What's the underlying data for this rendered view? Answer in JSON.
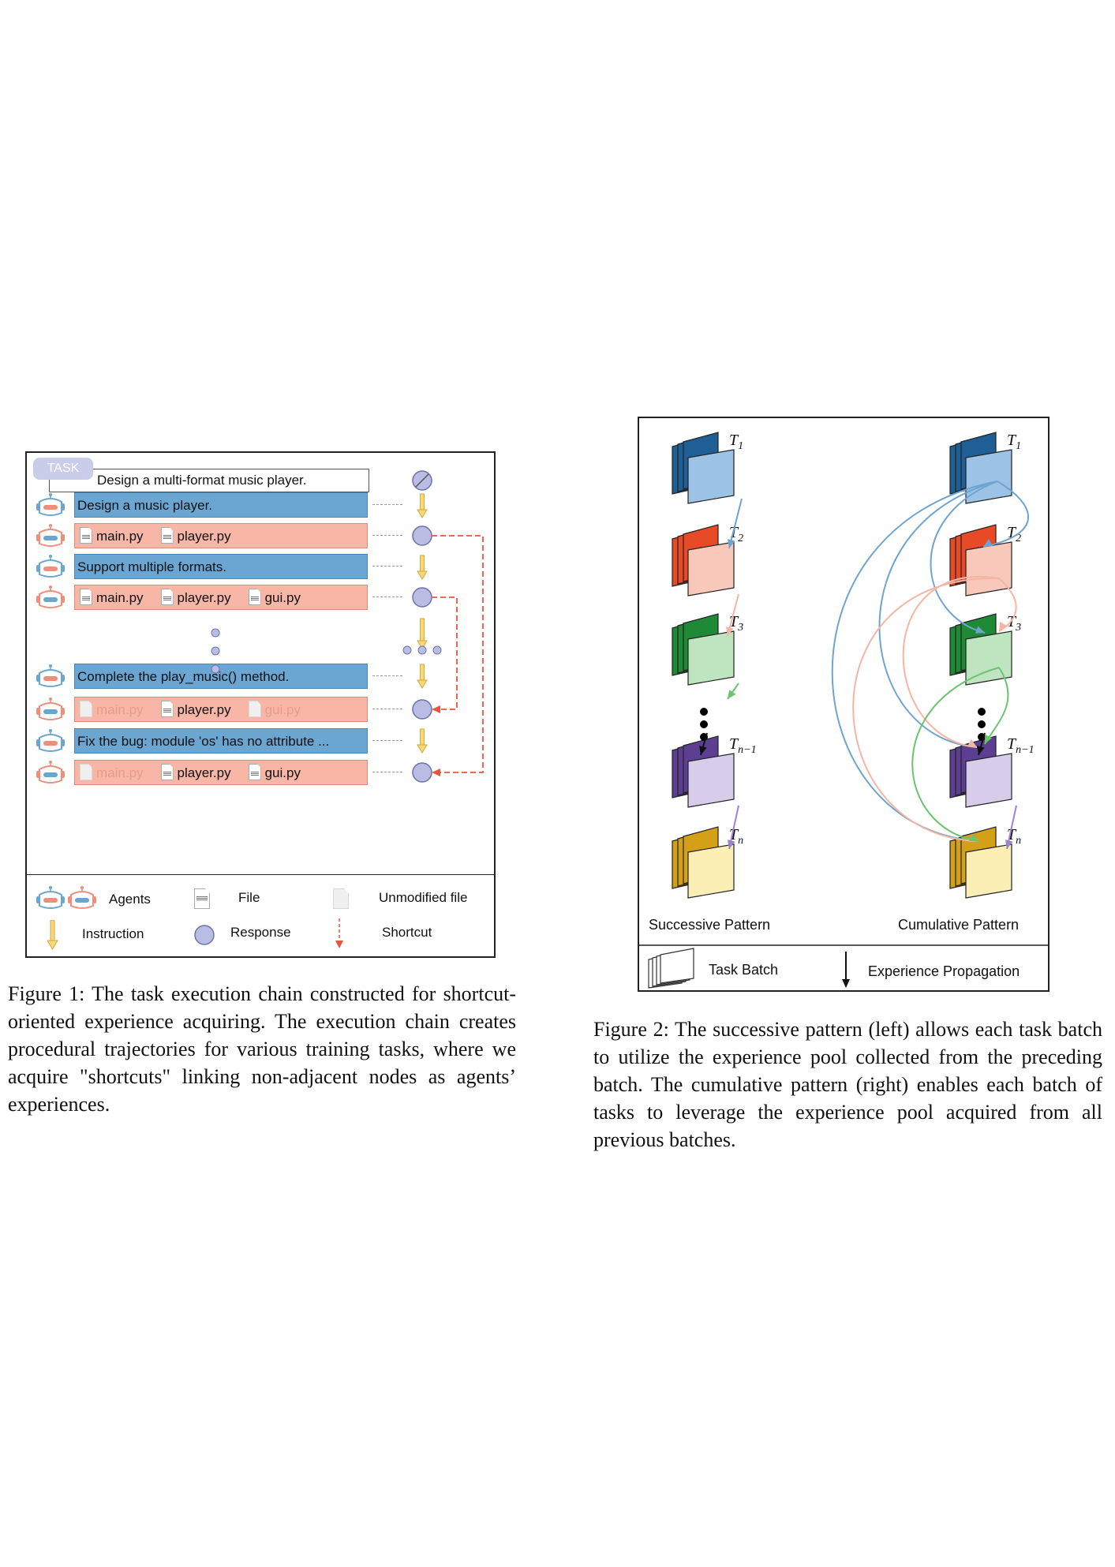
{
  "figure1": {
    "task_badge": "TASK",
    "task_text": "Design a multi-format music player.",
    "rows": [
      {
        "type": "instruction",
        "text": "Design a music player."
      },
      {
        "type": "response",
        "files": [
          {
            "name": "main.py",
            "modified": true
          },
          {
            "name": "player.py",
            "modified": true
          }
        ]
      },
      {
        "type": "instruction",
        "text": "Support multiple formats."
      },
      {
        "type": "response",
        "files": [
          {
            "name": "main.py",
            "modified": true
          },
          {
            "name": "player.py",
            "modified": true
          },
          {
            "name": "gui.py",
            "modified": true
          }
        ]
      },
      {
        "type": "instruction",
        "text": "Complete the play_music() method."
      },
      {
        "type": "response",
        "files": [
          {
            "name": "main.py",
            "modified": false
          },
          {
            "name": "player.py",
            "modified": true
          },
          {
            "name": "gui.py",
            "modified": false
          }
        ]
      },
      {
        "type": "instruction",
        "text": "Fix the bug: module 'os' has no attribute ..."
      },
      {
        "type": "response",
        "files": [
          {
            "name": "main.py",
            "modified": false
          },
          {
            "name": "player.py",
            "modified": true
          },
          {
            "name": "gui.py",
            "modified": true
          }
        ]
      }
    ],
    "legend": {
      "agents": "Agents",
      "file": "File",
      "unmodified": "Unmodified file",
      "instruction": "Instruction",
      "response": "Response",
      "shortcut": "Shortcut"
    },
    "colors": {
      "instruction_fill": "#6ba6d3",
      "response_fill": "#f7b6a6",
      "shortcut": "#e8553a",
      "arrow": "#e8b83a",
      "node": "#b9bde3"
    }
  },
  "figure2": {
    "batch_labels": [
      "T1",
      "T2",
      "T3",
      "Tn−1",
      "Tn"
    ],
    "left_title": "Successive Pattern",
    "right_title": "Cumulative Pattern",
    "legend_batch": "Task Batch",
    "legend_propagation": "Experience Propagation",
    "batch_colors": [
      {
        "dark": "#1f5f96",
        "light": "#9cc2e5"
      },
      {
        "dark": "#e84a28",
        "light": "#f8c8ba"
      },
      {
        "dark": "#1f8a36",
        "light": "#bfe5c0"
      },
      {
        "dark": "#5c3f91",
        "light": "#d7cdea"
      },
      {
        "dark": "#d4a017",
        "light": "#fcefb6"
      }
    ]
  },
  "captions": {
    "figure1": "Figure 1: The task execution chain constructed for shortcut-oriented experience acquiring. The execution chain creates procedural trajectories for various training tasks, where we acquire \"shortcuts\" linking non-adjacent nodes as agents’ experiences.",
    "figure2": "Figure 2: The successive pattern (left) allows each task batch to utilize the experience pool collected from the preceding batch. The cumulative pattern (right) enables each batch of tasks to leverage the experience pool acquired from all previous batches."
  }
}
